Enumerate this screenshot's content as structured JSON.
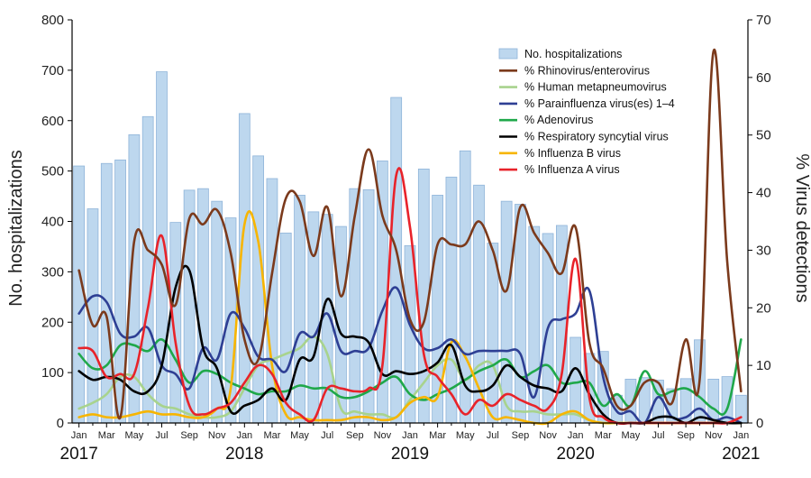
{
  "chart_data": {
    "type": "bar+line",
    "title": "",
    "ylabel_left": "No. hospitalizations",
    "ylabel_right": "% Virus detections",
    "ylim_left": [
      0,
      800
    ],
    "ylim_right": [
      0,
      70
    ],
    "yticks_left": [
      "0",
      "100",
      "200",
      "300",
      "400",
      "500",
      "600",
      "700",
      "800"
    ],
    "yticks_right": [
      "0",
      "10",
      "20",
      "30",
      "40",
      "50",
      "60",
      "70"
    ],
    "month_ticks": [
      "Jan",
      "Mar",
      "May",
      "Jul",
      "Sep",
      "Nov",
      "Jan",
      "Mar",
      "May",
      "Jul",
      "Sep",
      "Nov",
      "Jan",
      "Mar",
      "May",
      "Jul",
      "Sep",
      "Nov",
      "Jan",
      "Mar",
      "May",
      "Jul",
      "Sep",
      "Nov",
      "Jan"
    ],
    "year_labels": [
      "2017",
      "2018",
      "2019",
      "2020",
      "2021"
    ],
    "legend_position": "top-right",
    "bars": {
      "name": "No. hospitalizations",
      "color": "#bdd7ee",
      "values": [
        510,
        425,
        515,
        522,
        572,
        608,
        697,
        398,
        462,
        465,
        440,
        407,
        614,
        530,
        485,
        377,
        452,
        419,
        414,
        390,
        465,
        463,
        520,
        646,
        352,
        504,
        452,
        488,
        540,
        472,
        357,
        440,
        434,
        390,
        376,
        392,
        170,
        138,
        142,
        55,
        87,
        90,
        85,
        68,
        88,
        165,
        87,
        92,
        55
      ]
    },
    "series": [
      {
        "name": "% Rhinovirus/enterovirus",
        "color": "#7b3a1c",
        "values": [
          26.5,
          17,
          18.5,
          1,
          31.5,
          30,
          27.5,
          20.5,
          35.5,
          34.5,
          37,
          29.5,
          14.5,
          11,
          26,
          39,
          38.5,
          29,
          37.5,
          22,
          36,
          47.5,
          36,
          30,
          18,
          17.5,
          31,
          31,
          31,
          35,
          30,
          23,
          37.5,
          33,
          29.5,
          26,
          34,
          14,
          9.5,
          3,
          3,
          7,
          7,
          3.5,
          14.5,
          7.5,
          64.5,
          28,
          5.5
        ]
      },
      {
        "name": "% Human metapneumovirus",
        "color": "#a8d38d",
        "values": [
          2.5,
          3.5,
          5,
          8,
          8,
          5,
          3,
          2.5,
          1.5,
          1,
          1,
          2,
          6,
          10,
          11,
          12,
          13,
          15,
          12,
          2.5,
          2,
          1.5,
          1.5,
          1,
          4,
          7,
          10,
          11,
          7.5,
          10,
          10,
          3,
          2,
          2,
          1.5,
          1.5,
          1.5,
          0.5,
          0,
          0,
          0,
          0,
          0,
          0,
          0,
          0,
          0,
          0,
          0
        ]
      },
      {
        "name": "% Parainfluenza virus(es) 1–4",
        "color": "#2e3f94",
        "values": [
          19,
          22,
          21,
          15.5,
          15,
          16.5,
          10,
          8.5,
          6,
          13,
          11,
          19,
          16.5,
          11.5,
          11,
          9,
          15.5,
          15,
          19,
          12.5,
          12.5,
          13,
          19.5,
          23.5,
          17,
          13,
          13,
          14.5,
          12,
          12.5,
          12.5,
          12.5,
          12,
          4.5,
          16.5,
          18,
          19,
          23,
          8,
          2,
          2,
          0,
          4.5,
          1,
          1,
          2.5,
          0.5,
          1,
          0
        ]
      },
      {
        "name": "% Adenovirus",
        "color": "#1fa84a",
        "values": [
          12,
          9.5,
          10,
          13.5,
          13.5,
          12.5,
          14.5,
          11,
          7,
          9,
          8.5,
          7,
          6,
          5,
          5.5,
          5.5,
          6.5,
          6,
          6,
          4.5,
          4.5,
          5.5,
          7,
          8,
          5,
          4,
          5,
          6,
          7.5,
          9,
          10,
          11,
          8,
          9,
          10,
          7,
          7,
          7,
          3,
          5,
          3,
          9,
          5,
          5.5,
          6,
          4.5,
          2.5,
          2.5,
          14.5
        ]
      },
      {
        "name": "% Respiratory syncytial virus",
        "color": "#000000",
        "values": [
          9,
          7.5,
          8,
          7.5,
          5.5,
          5.5,
          10,
          23.5,
          26.5,
          13,
          9.5,
          2,
          3,
          4,
          6,
          4,
          11,
          11.5,
          21.5,
          15.5,
          15,
          14,
          8.5,
          9,
          8.5,
          9,
          10.5,
          13.5,
          6.5,
          5.5,
          6.5,
          10,
          8,
          6.5,
          6,
          5.5,
          9.5,
          5,
          1.5,
          0,
          0,
          0,
          1,
          1,
          0,
          1,
          0.5,
          0,
          0
        ]
      },
      {
        "name": "% Influenza B virus",
        "color": "#f7b500",
        "values": [
          1,
          1.5,
          1,
          1,
          1.5,
          2,
          1.5,
          1.5,
          1,
          1,
          2.5,
          6,
          34.5,
          31.5,
          10,
          1.5,
          1,
          0.5,
          0.5,
          0.5,
          1,
          1,
          0.5,
          1,
          3.5,
          4.5,
          4.5,
          14,
          11.5,
          6,
          1,
          1,
          0.5,
          0,
          0,
          1.5,
          2,
          0.5,
          0,
          0,
          0,
          0,
          0,
          0,
          0,
          0,
          0,
          0,
          0
        ]
      },
      {
        "name": "% Influenza A virus",
        "color": "#e8232a",
        "values": [
          13,
          12.5,
          8,
          8.5,
          8.5,
          20,
          32.5,
          14,
          3,
          1.5,
          2.5,
          3.5,
          7,
          10,
          8.5,
          3.5,
          1.5,
          0.5,
          6,
          6,
          5.5,
          6,
          10,
          43,
          34,
          12,
          8,
          5,
          1.5,
          4,
          3,
          5,
          4,
          3,
          2.5,
          8.5,
          28.5,
          4.5,
          1,
          0,
          0,
          0,
          0,
          0,
          0,
          0,
          0,
          0,
          1
        ]
      }
    ]
  }
}
